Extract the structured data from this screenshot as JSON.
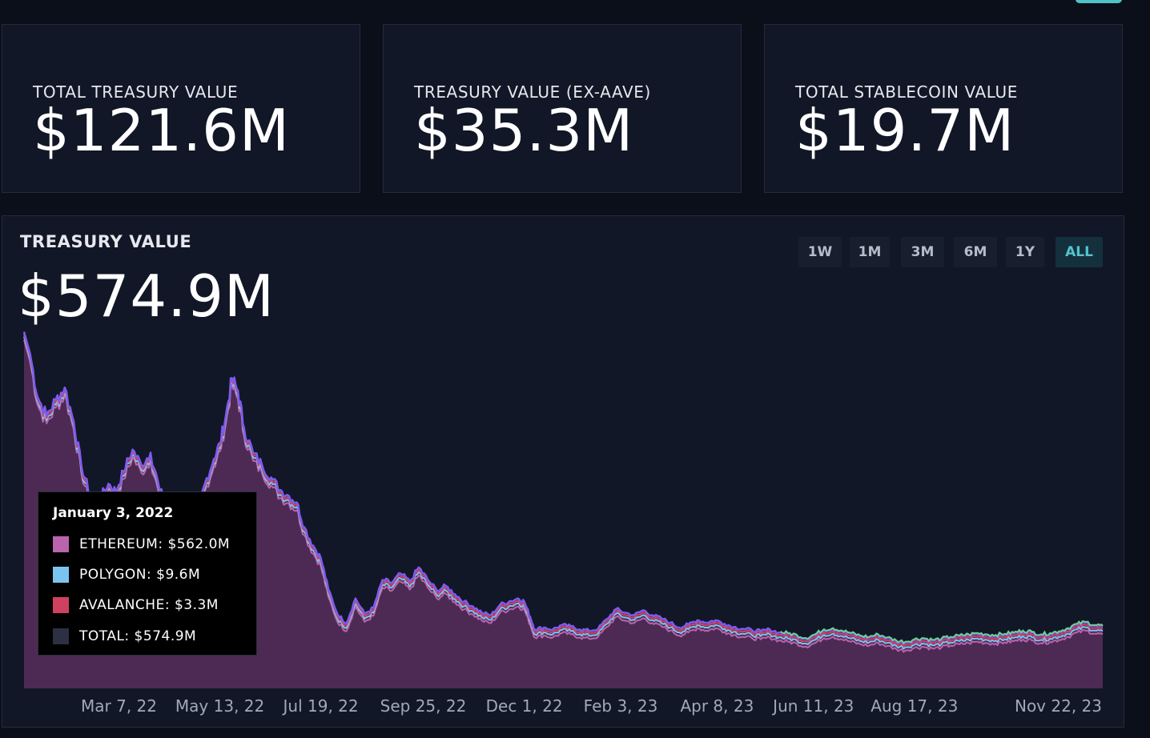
{
  "stats": [
    {
      "label": "TOTAL TREASURY VALUE",
      "value": "$121.6M"
    },
    {
      "label": "TREASURY VALUE (EX-AAVE)",
      "value": "$35.3M"
    },
    {
      "label": "TOTAL STABLECOIN VALUE",
      "value": "$19.7M"
    }
  ],
  "chart_header": {
    "title": "TREASURY VALUE",
    "value": "$574.9M"
  },
  "range_buttons": [
    {
      "label": "1W",
      "active": false
    },
    {
      "label": "1M",
      "active": false
    },
    {
      "label": "3M",
      "active": false
    },
    {
      "label": "6M",
      "active": false
    },
    {
      "label": "1Y",
      "active": false
    },
    {
      "label": "ALL",
      "active": true
    }
  ],
  "tooltip": {
    "date": "January 3, 2022",
    "rows": [
      {
        "text": "ETHEREUM: $562.0M",
        "color": "#b964ad"
      },
      {
        "text": "POLYGON: $9.6M",
        "color": "#7cc4f0"
      },
      {
        "text": "AVALANCHE: $3.3M",
        "color": "#d0415f"
      },
      {
        "text": "TOTAL: $574.9M",
        "color": "#2b3142"
      }
    ]
  },
  "colors": {
    "ethereum_fill": "#4d2a54",
    "ethereum_line": "#b964ad",
    "polygon_line": "#7cc4f0",
    "avalanche_line": "#d0415f",
    "violet_line": "#7b5cf0",
    "green_line": "#6ee88a",
    "accent": "#54c3cf"
  },
  "chart_data": {
    "type": "area",
    "title": "TREASURY VALUE",
    "xlabel": "",
    "ylabel": "",
    "x_ticks": [
      "Mar 7, 22",
      "May 13, 22",
      "Jul 19, 22",
      "Sep 25, 22",
      "Dec 1, 22",
      "Feb 3, 23",
      "Apr 8, 23",
      "Jun 11, 23",
      "Aug 17, 23",
      "Nov 22, 23"
    ],
    "tick_dates": [
      "2022-03-07",
      "2022-05-13",
      "2022-07-19",
      "2022-09-25",
      "2022-12-01",
      "2023-02-03",
      "2023-04-08",
      "2023-06-11",
      "2023-08-17",
      "2023-11-22"
    ],
    "x_range": [
      "2022-01-03",
      "2023-12-20"
    ],
    "ylim": [
      0,
      600
    ],
    "grid": false,
    "stacked": true,
    "series": [
      {
        "name": "ETHEREUM"
      },
      {
        "name": "POLYGON"
      },
      {
        "name": "AVALANCHE"
      },
      {
        "name": "TOTAL"
      }
    ],
    "total_points": [
      [
        "2022-01-03",
        574.9
      ],
      [
        "2022-01-07",
        540
      ],
      [
        "2022-01-12",
        470
      ],
      [
        "2022-01-18",
        440
      ],
      [
        "2022-01-24",
        465
      ],
      [
        "2022-01-30",
        485
      ],
      [
        "2022-02-05",
        430
      ],
      [
        "2022-02-10",
        360
      ],
      [
        "2022-02-16",
        310
      ],
      [
        "2022-02-22",
        305
      ],
      [
        "2022-02-28",
        330
      ],
      [
        "2022-03-05",
        318
      ],
      [
        "2022-03-10",
        350
      ],
      [
        "2022-03-16",
        385
      ],
      [
        "2022-03-22",
        360
      ],
      [
        "2022-03-28",
        380
      ],
      [
        "2022-04-03",
        320
      ],
      [
        "2022-04-09",
        290
      ],
      [
        "2022-04-15",
        280
      ],
      [
        "2022-04-21",
        270
      ],
      [
        "2022-04-27",
        275
      ],
      [
        "2022-05-03",
        330
      ],
      [
        "2022-05-09",
        370
      ],
      [
        "2022-05-13",
        395
      ],
      [
        "2022-05-17",
        440
      ],
      [
        "2022-05-21",
        500
      ],
      [
        "2022-05-25",
        480
      ],
      [
        "2022-05-29",
        420
      ],
      [
        "2022-06-04",
        380
      ],
      [
        "2022-06-10",
        360
      ],
      [
        "2022-06-16",
        340
      ],
      [
        "2022-06-22",
        320
      ],
      [
        "2022-06-28",
        310
      ],
      [
        "2022-07-03",
        300
      ],
      [
        "2022-07-08",
        260
      ],
      [
        "2022-07-14",
        230
      ],
      [
        "2022-07-19",
        210
      ],
      [
        "2022-07-24",
        160
      ],
      [
        "2022-07-30",
        120
      ],
      [
        "2022-08-05",
        105
      ],
      [
        "2022-08-11",
        145
      ],
      [
        "2022-08-17",
        120
      ],
      [
        "2022-08-23",
        130
      ],
      [
        "2022-08-29",
        175
      ],
      [
        "2022-09-04",
        170
      ],
      [
        "2022-09-10",
        185
      ],
      [
        "2022-09-16",
        172
      ],
      [
        "2022-09-22",
        195
      ],
      [
        "2022-09-28",
        175
      ],
      [
        "2022-10-04",
        158
      ],
      [
        "2022-10-10",
        165
      ],
      [
        "2022-10-16",
        152
      ],
      [
        "2022-10-22",
        140
      ],
      [
        "2022-10-28",
        132
      ],
      [
        "2022-11-03",
        122
      ],
      [
        "2022-11-09",
        118
      ],
      [
        "2022-11-15",
        135
      ],
      [
        "2022-11-21",
        140
      ],
      [
        "2022-11-27",
        145
      ],
      [
        "2022-12-01",
        140
      ],
      [
        "2022-12-05",
        115
      ],
      [
        "2022-12-08",
        95
      ],
      [
        "2022-12-14",
        98
      ],
      [
        "2022-12-20",
        95
      ],
      [
        "2022-12-26",
        102
      ],
      [
        "2023-01-01",
        100
      ],
      [
        "2023-01-07",
        95
      ],
      [
        "2023-01-13",
        93
      ],
      [
        "2023-01-19",
        96
      ],
      [
        "2023-01-25",
        112
      ],
      [
        "2023-01-31",
        128
      ],
      [
        "2023-02-06",
        122
      ],
      [
        "2023-02-12",
        118
      ],
      [
        "2023-02-18",
        126
      ],
      [
        "2023-02-24",
        118
      ],
      [
        "2023-03-02",
        113
      ],
      [
        "2023-03-08",
        106
      ],
      [
        "2023-03-14",
        98
      ],
      [
        "2023-03-20",
        103
      ],
      [
        "2023-03-26",
        110
      ],
      [
        "2023-04-01",
        106
      ],
      [
        "2023-04-07",
        110
      ],
      [
        "2023-04-13",
        104
      ],
      [
        "2023-04-19",
        99
      ],
      [
        "2023-04-25",
        96
      ],
      [
        "2023-05-01",
        94
      ],
      [
        "2023-05-07",
        92
      ],
      [
        "2023-05-13",
        95
      ],
      [
        "2023-05-19",
        90
      ],
      [
        "2023-05-25",
        88
      ],
      [
        "2023-05-31",
        85
      ],
      [
        "2023-06-06",
        80
      ],
      [
        "2023-06-12",
        86
      ],
      [
        "2023-06-18",
        94
      ],
      [
        "2023-06-24",
        96
      ],
      [
        "2023-06-30",
        92
      ],
      [
        "2023-07-06",
        88
      ],
      [
        "2023-07-12",
        84
      ],
      [
        "2023-07-18",
        82
      ],
      [
        "2023-07-24",
        86
      ],
      [
        "2023-07-30",
        81
      ],
      [
        "2023-08-05",
        76
      ],
      [
        "2023-08-11",
        74
      ],
      [
        "2023-08-17",
        78
      ],
      [
        "2023-08-23",
        80
      ],
      [
        "2023-08-29",
        77
      ],
      [
        "2023-09-04",
        79
      ],
      [
        "2023-09-10",
        82
      ],
      [
        "2023-09-16",
        84
      ],
      [
        "2023-09-22",
        86
      ],
      [
        "2023-09-28",
        88
      ],
      [
        "2023-10-04",
        86
      ],
      [
        "2023-10-10",
        85
      ],
      [
        "2023-10-16",
        87
      ],
      [
        "2023-10-22",
        89
      ],
      [
        "2023-10-28",
        92
      ],
      [
        "2023-11-03",
        90
      ],
      [
        "2023-11-09",
        86
      ],
      [
        "2023-11-15",
        88
      ],
      [
        "2023-11-21",
        91
      ],
      [
        "2023-11-27",
        96
      ],
      [
        "2023-12-03",
        103
      ],
      [
        "2023-12-09",
        106
      ],
      [
        "2023-12-15",
        101
      ],
      [
        "2023-12-20",
        100
      ]
    ]
  }
}
